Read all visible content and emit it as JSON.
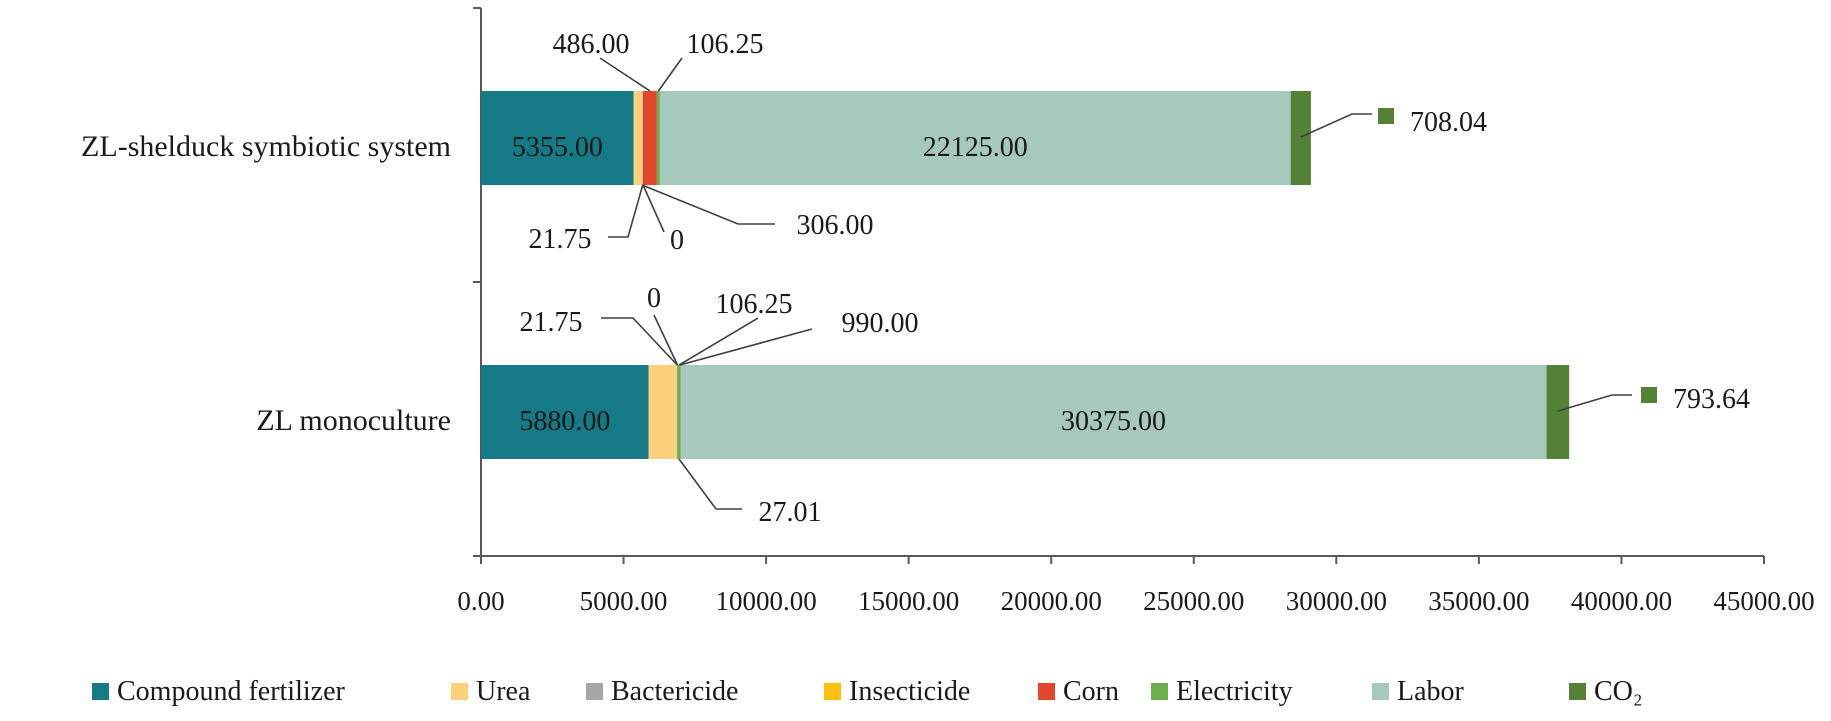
{
  "chart_data": {
    "type": "bar",
    "orientation": "horizontal",
    "stacked": true,
    "categories": [
      "ZL-shelduck symbiotic system",
      "ZL monoculture"
    ],
    "xlim": [
      0,
      45000
    ],
    "x_ticks": [
      0,
      5000,
      10000,
      15000,
      20000,
      25000,
      30000,
      35000,
      40000,
      45000
    ],
    "x_tick_labels": [
      "0.00",
      "5000.00",
      "10000.00",
      "15000.00",
      "20000.00",
      "25000.00",
      "30000.00",
      "35000.00",
      "40000.00",
      "45000.00"
    ],
    "grid": false,
    "legend_position": "bottom",
    "series": [
      {
        "name": "Compound fertilizer",
        "color": "#157a85",
        "values": [
          5355.0,
          5880.0
        ],
        "labels": [
          "5355.00",
          "5880.00"
        ]
      },
      {
        "name": "Urea",
        "color": "#fdd07e",
        "values": [
          306.0,
          990.0
        ],
        "labels": [
          "306.00",
          "990.00"
        ]
      },
      {
        "name": "Bactericide",
        "color": "#a6a6a6",
        "values": [
          21.75,
          21.75
        ],
        "labels": [
          "21.75",
          "21.75"
        ]
      },
      {
        "name": "Insecticide",
        "color": "#fbbf0f",
        "values": [
          0,
          0
        ],
        "labels": [
          "0",
          "0"
        ]
      },
      {
        "name": "Corn",
        "color": "#e1472f",
        "values": [
          486.0,
          0
        ],
        "labels": [
          "486.00",
          ""
        ]
      },
      {
        "name": "Electricity",
        "color": "#6fae4f",
        "values": [
          106.25,
          106.25
        ],
        "labels": [
          "106.25",
          "106.25"
        ]
      },
      {
        "name": "Labor",
        "color": "#a7c8bc",
        "values": [
          22125.0,
          30375.0
        ],
        "labels": [
          "22125.00",
          "30375.00"
        ]
      },
      {
        "name": "CO₂",
        "color": "#538135",
        "values": [
          708.04,
          793.64
        ],
        "labels": [
          "708.04",
          "793.64"
        ]
      }
    ],
    "extra_labels": [
      "27.01"
    ]
  }
}
